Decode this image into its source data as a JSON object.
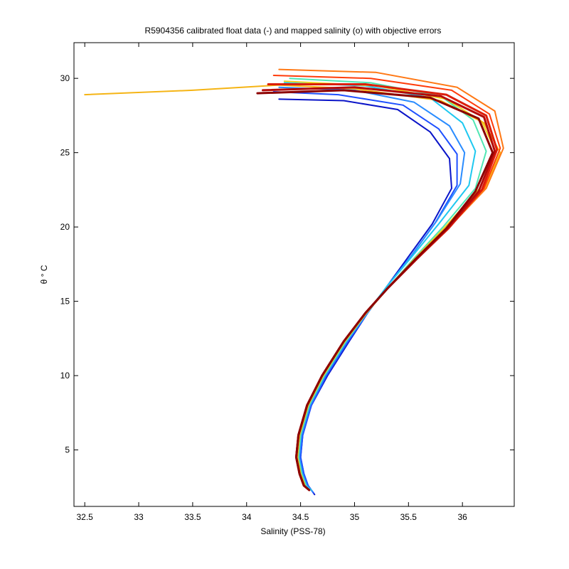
{
  "chart_data": {
    "type": "line",
    "title": "R5904356 calibrated float data (-) and mapped salinity (o) with objective errors",
    "xlabel": "Salinity (PSS-78)",
    "ylabel": "θ ° C",
    "xlim": [
      32.4,
      36.48
    ],
    "ylim": [
      1.2,
      32.4
    ],
    "xticks": [
      32.5,
      33,
      33.5,
      34,
      34.5,
      35,
      35.5,
      36
    ],
    "xtick_labels": [
      "32.5",
      "33",
      "33.5",
      "34",
      "34.5",
      "35",
      "35.5",
      "36"
    ],
    "yticks": [
      5,
      10,
      15,
      20,
      25,
      30
    ],
    "ytick_labels": [
      "5",
      "10",
      "15",
      "20",
      "25",
      "30"
    ],
    "grid": false,
    "legend": "none",
    "colormap": "jet",
    "series": [
      {
        "color": "#0a14c8",
        "x": [
          34.3,
          34.9,
          35.4,
          35.7,
          35.88,
          35.9,
          35.72,
          35.5,
          35.3,
          35.12,
          34.95,
          34.75,
          34.6,
          34.52,
          34.5,
          34.53,
          34.57,
          34.63
        ],
        "y": [
          28.6,
          28.5,
          27.9,
          26.4,
          24.6,
          22.6,
          20.2,
          18.0,
          16.0,
          14.2,
          12.3,
          10.0,
          8.0,
          6.0,
          4.5,
          3.4,
          2.6,
          2.0
        ]
      },
      {
        "color": "#1e50ff",
        "x": [
          34.25,
          34.85,
          35.45,
          35.78,
          35.95,
          35.95,
          35.75,
          35.52,
          35.3,
          35.12,
          34.94,
          34.74,
          34.6,
          34.52,
          34.5,
          34.53,
          34.57,
          34.62
        ],
        "y": [
          29.1,
          28.9,
          28.2,
          26.6,
          24.9,
          22.8,
          20.3,
          18.0,
          16.0,
          14.2,
          12.3,
          10.0,
          8.0,
          6.0,
          4.5,
          3.4,
          2.6,
          2.1
        ]
      },
      {
        "color": "#2a8cff",
        "x": [
          34.3,
          35.0,
          35.55,
          35.88,
          36.02,
          35.98,
          35.76,
          35.52,
          35.3,
          35.12,
          34.93,
          34.73,
          34.59,
          34.51,
          34.49,
          34.52,
          34.56,
          34.61
        ],
        "y": [
          29.4,
          29.2,
          28.4,
          26.8,
          25.0,
          22.9,
          20.4,
          18.0,
          16.0,
          14.2,
          12.3,
          10.0,
          8.0,
          6.0,
          4.5,
          3.4,
          2.6,
          2.2
        ]
      },
      {
        "color": "#1ec8f0",
        "x": [
          34.35,
          35.1,
          35.7,
          36.0,
          36.12,
          36.06,
          35.78,
          35.52,
          35.3,
          35.11,
          34.92,
          34.72,
          34.58,
          34.5,
          34.48,
          34.51,
          34.55,
          34.6
        ],
        "y": [
          29.7,
          29.5,
          28.7,
          27.0,
          25.1,
          22.8,
          20.2,
          17.9,
          16.0,
          14.2,
          12.3,
          10.0,
          8.0,
          6.0,
          4.5,
          3.4,
          2.6,
          2.3
        ]
      },
      {
        "color": "#50e6b4",
        "x": [
          34.4,
          35.15,
          35.8,
          36.1,
          36.22,
          36.12,
          35.82,
          35.54,
          35.31,
          35.11,
          34.92,
          34.72,
          34.58,
          34.5,
          34.48,
          34.51,
          34.55
        ],
        "y": [
          30.0,
          29.7,
          28.8,
          27.2,
          25.1,
          22.6,
          20.0,
          17.8,
          15.9,
          14.2,
          12.3,
          10.0,
          8.0,
          6.0,
          4.5,
          3.4,
          2.6
        ]
      },
      {
        "color": "#f0d21e",
        "x": [
          34.35,
          35.2,
          35.85,
          36.18,
          36.3,
          36.16,
          35.84,
          35.55,
          35.31,
          35.11,
          34.91,
          34.71,
          34.57,
          34.49,
          34.47,
          34.5,
          34.54
        ],
        "y": [
          29.8,
          29.5,
          28.6,
          27.1,
          25.2,
          22.6,
          20.0,
          17.8,
          15.9,
          14.2,
          12.3,
          10.0,
          8.0,
          6.0,
          4.5,
          3.4,
          2.6
        ]
      },
      {
        "color": "#f5b414",
        "x": [
          32.5,
          33.5,
          34.3,
          35.0,
          35.8,
          36.2,
          36.35,
          36.2,
          35.86,
          35.56,
          35.31,
          35.1,
          34.9,
          34.7,
          34.57,
          34.49,
          34.47,
          34.5,
          34.54
        ],
        "y": [
          28.9,
          29.2,
          29.55,
          29.3,
          28.5,
          27.0,
          25.0,
          22.5,
          19.9,
          17.8,
          15.9,
          14.2,
          12.3,
          10.0,
          8.0,
          6.0,
          4.5,
          3.4,
          2.6
        ]
      },
      {
        "color": "#ff7814",
        "x": [
          34.3,
          35.2,
          35.95,
          36.3,
          36.38,
          36.22,
          35.88,
          35.57,
          35.31,
          35.1,
          34.9,
          34.7,
          34.56,
          34.48,
          34.46,
          34.49,
          34.53
        ],
        "y": [
          30.6,
          30.4,
          29.4,
          27.8,
          25.3,
          22.6,
          20.0,
          17.8,
          15.9,
          14.2,
          12.3,
          10.0,
          8.0,
          6.0,
          4.5,
          3.4,
          2.6
        ]
      },
      {
        "color": "#ff3c0a",
        "x": [
          34.25,
          35.15,
          35.9,
          36.25,
          36.35,
          36.2,
          35.88,
          35.57,
          35.31,
          35.1,
          34.9,
          34.7,
          34.56,
          34.48,
          34.46,
          34.49,
          34.53
        ],
        "y": [
          30.2,
          30.0,
          29.2,
          27.6,
          25.3,
          22.6,
          20.0,
          17.8,
          15.9,
          14.2,
          12.3,
          10.0,
          8.0,
          6.0,
          4.5,
          3.4,
          2.6
        ]
      },
      {
        "color": "#dc1e0a",
        "x": [
          34.2,
          35.1,
          35.85,
          36.22,
          36.32,
          36.18,
          35.87,
          35.57,
          35.31,
          35.1,
          34.9,
          34.7,
          34.56,
          34.48,
          34.46,
          34.49,
          34.53
        ],
        "y": [
          29.6,
          29.6,
          28.9,
          27.5,
          25.2,
          22.5,
          19.9,
          17.8,
          15.9,
          14.2,
          12.3,
          10.0,
          8.0,
          6.0,
          4.5,
          3.4,
          2.6
        ]
      },
      {
        "color": "#b40a0a",
        "x": [
          34.15,
          35.0,
          35.8,
          36.2,
          36.3,
          36.15,
          35.86,
          35.57,
          35.31,
          35.1,
          34.9,
          34.7,
          34.56,
          34.48,
          34.46,
          34.49,
          34.53,
          34.58
        ],
        "y": [
          29.2,
          29.4,
          28.8,
          27.4,
          25.1,
          22.4,
          19.9,
          17.8,
          15.9,
          14.2,
          12.3,
          10.0,
          8.0,
          6.0,
          4.5,
          3.4,
          2.6,
          2.3
        ]
      },
      {
        "color": "#8c0000",
        "x": [
          34.1,
          34.9,
          35.7,
          36.15,
          36.28,
          36.12,
          35.85,
          35.56,
          35.31,
          35.1,
          34.9,
          34.7,
          34.56,
          34.48,
          34.46,
          34.49,
          34.53,
          34.58
        ],
        "y": [
          29.0,
          29.2,
          28.7,
          27.3,
          25.0,
          22.4,
          19.9,
          17.8,
          15.9,
          14.2,
          12.3,
          10.0,
          8.0,
          6.0,
          4.5,
          3.4,
          2.6,
          2.3
        ]
      }
    ]
  }
}
